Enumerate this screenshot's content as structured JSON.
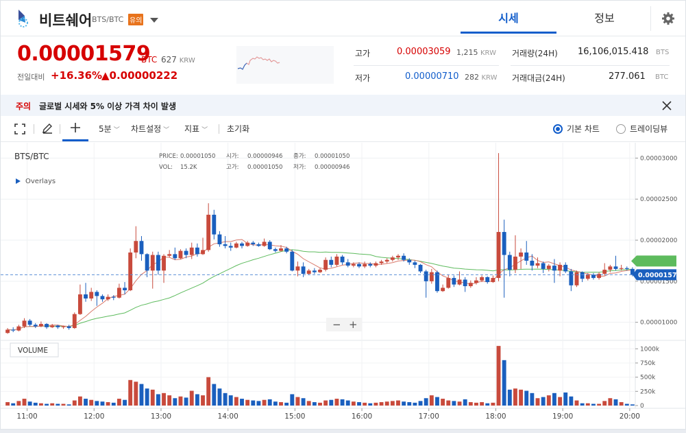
{
  "header": {
    "coin_name": "비트쉐어",
    "pair": "BTS/BTC",
    "warning_badge": "유의",
    "tabs": [
      {
        "label": "시세",
        "active": true
      },
      {
        "label": "정보",
        "active": false
      }
    ]
  },
  "summary": {
    "price": "0.00001579",
    "price_unit": "BTC",
    "price_krw": "627",
    "krw_unit": "KRW",
    "change_label": "전일대비",
    "change_pct": "+16.36%",
    "change_abs": "▲0.00000222",
    "high_label": "고가",
    "high_value": "0.00003059",
    "high_krw": "1,215",
    "low_label": "저가",
    "low_value": "0.00000710",
    "low_krw": "282",
    "krw_unit2": "KRW",
    "volume_label": "거래량(24H)",
    "volume_value": "16,106,015.418",
    "volume_unit": "BTS",
    "amount_label": "거래대금(24H)",
    "amount_value": "277.061",
    "amount_unit": "BTC"
  },
  "notice": {
    "tag": "주의",
    "text": "글로벌 시세와 5% 이상 가격 차이 발생"
  },
  "toolbar": {
    "interval": "5분",
    "chart_settings": "차트설정",
    "indicators": "지표",
    "reset": "초기화",
    "basic_chart": "기본 차트",
    "tradingview": "트레이딩뷰"
  },
  "chart_labels": {
    "symbol": "BTS/BTC",
    "overlays": "Overlays",
    "volume_btn": "VOLUME",
    "zoom_out": "−",
    "zoom_in": "+"
  },
  "colors": {
    "up": "#c84a3c",
    "down": "#1a5fbe",
    "ma_short": "#d9796b",
    "ma_long": "#5dbb5d",
    "accent": "#115dcb"
  },
  "chart_data": {
    "type": "candlestick",
    "symbol": "BTS/BTC",
    "legend": {
      "PRICE": "0.00001050",
      "시가": "0.00000946",
      "종가": "0.00001050",
      "VOL": "15.2K",
      "고가": "0.00001050",
      "저가": "0.00000946"
    },
    "price_ticks": [
      "0.00003000",
      "0.00002500",
      "0.00002000",
      "0.00001500",
      "0.00001000"
    ],
    "price_tick_values": [
      3e-05,
      2.5e-05,
      2e-05,
      1.5e-05,
      1e-05
    ],
    "ylim": [
      7.8e-06,
      3.12e-05
    ],
    "current_price": "0.00001579",
    "current_price_value": 1.579e-05,
    "volume_ticks": [
      "1000k",
      "750k",
      "500k",
      "250k",
      "0"
    ],
    "volume_tick_values": [
      1000000,
      750000,
      500000,
      250000,
      0
    ],
    "volume_max": 1100000,
    "time_labels": [
      "11:00",
      "12:00",
      "13:00",
      "14:00",
      "15:00",
      "16:00",
      "17:00",
      "18:00",
      "19:00",
      "20:00"
    ],
    "start_label": "10:40",
    "interval_minutes": 5,
    "candles": [
      [
        8.7e-06,
        9.1e-06,
        9.3e-06,
        8.6e-06,
        60000
      ],
      [
        9.1e-06,
        9e-06,
        9.4e-06,
        8.8e-06,
        40000
      ],
      [
        9e-06,
        9.5e-06,
        9.7e-06,
        8.9e-06,
        80000
      ],
      [
        9.5e-06,
        1.02e-05,
        1.05e-05,
        9.3e-06,
        120000
      ],
      [
        1.02e-05,
        9.7e-06,
        1.04e-05,
        9.5e-06,
        70000
      ],
      [
        9.7e-06,
        9.5e-06,
        9.9e-06,
        9.3e-06,
        50000
      ],
      [
        9.5e-06,
        9.8e-06,
        1.01e-05,
        9.4e-06,
        40000
      ],
      [
        9.8e-06,
        9.4e-06,
        9.9e-06,
        9.2e-06,
        30000
      ],
      [
        9.4e-06,
        9.6e-06,
        9.8e-06,
        9.3e-06,
        40000
      ],
      [
        9.6e-06,
        9.4e-06,
        9.7e-06,
        9.2e-06,
        30000
      ],
      [
        9.4e-06,
        9.5e-06,
        9.6e-06,
        9.2e-06,
        30000
      ],
      [
        9.5e-06,
        9.3e-06,
        9.7e-06,
        9.1e-06,
        20000
      ],
      [
        9.3e-06,
        1.1e-05,
        1.12e-05,
        9.2e-06,
        90000
      ],
      [
        1.1e-05,
        1.34e-05,
        1.46e-05,
        1.09e-05,
        160000
      ],
      [
        1.34e-05,
        1.29e-05,
        1.48e-05,
        1.25e-05,
        120000
      ],
      [
        1.29e-05,
        1.37e-05,
        1.42e-05,
        1.26e-05,
        100000
      ],
      [
        1.37e-05,
        1.32e-05,
        1.39e-05,
        1.2e-05,
        80000
      ],
      [
        1.32e-05,
        1.28e-05,
        1.34e-05,
        1.25e-05,
        70000
      ],
      [
        1.28e-05,
        1.31e-05,
        1.34e-05,
        1.26e-05,
        60000
      ],
      [
        1.31e-05,
        1.3e-05,
        1.33e-05,
        1.27e-05,
        50000
      ],
      [
        1.3e-05,
        1.42e-05,
        1.47e-05,
        1.29e-05,
        120000
      ],
      [
        1.42e-05,
        1.39e-05,
        1.49e-05,
        1.34e-05,
        100000
      ],
      [
        1.39e-05,
        1.85e-05,
        1.9e-05,
        1.38e-05,
        450000
      ],
      [
        1.85e-05,
        1.99e-05,
        2.17e-05,
        1.78e-05,
        420000
      ],
      [
        1.99e-05,
        1.83e-05,
        2.05e-05,
        1.75e-05,
        380000
      ],
      [
        1.83e-05,
        1.63e-05,
        1.84e-05,
        1.55e-05,
        300000
      ],
      [
        1.63e-05,
        1.82e-05,
        1.86e-05,
        1.41e-05,
        280000
      ],
      [
        1.82e-05,
        1.63e-05,
        1.86e-05,
        1.58e-05,
        200000
      ],
      [
        1.63e-05,
        1.81e-05,
        1.83e-05,
        1.48e-05,
        220000
      ],
      [
        1.81e-05,
        1.83e-05,
        1.88e-05,
        1.79e-05,
        180000
      ],
      [
        1.83e-05,
        1.78e-05,
        1.91e-05,
        1.76e-05,
        130000
      ],
      [
        1.78e-05,
        1.87e-05,
        1.89e-05,
        1.77e-05,
        160000
      ],
      [
        1.87e-05,
        1.82e-05,
        1.9e-05,
        1.78e-05,
        140000
      ],
      [
        1.82e-05,
        1.91e-05,
        1.97e-05,
        1.77e-05,
        260000
      ],
      [
        1.91e-05,
        1.83e-05,
        1.96e-05,
        1.8e-05,
        200000
      ],
      [
        1.83e-05,
        1.88e-05,
        2.03e-05,
        1.82e-05,
        180000
      ],
      [
        1.88e-05,
        2.31e-05,
        2.45e-05,
        1.86e-05,
        500000
      ],
      [
        2.31e-05,
        2.07e-05,
        2.37e-05,
        2.01e-05,
        380000
      ],
      [
        2.07e-05,
        1.95e-05,
        2.11e-05,
        1.92e-05,
        300000
      ],
      [
        1.95e-05,
        1.93e-05,
        2.05e-05,
        1.9e-05,
        220000
      ],
      [
        1.93e-05,
        1.91e-05,
        1.97e-05,
        1.87e-05,
        180000
      ],
      [
        1.91e-05,
        1.96e-05,
        1.98e-05,
        1.9e-05,
        150000
      ],
      [
        1.96e-05,
        1.93e-05,
        1.98e-05,
        1.9e-05,
        120000
      ],
      [
        1.93e-05,
        1.97e-05,
        1.99e-05,
        1.92e-05,
        100000
      ],
      [
        1.97e-05,
        1.95e-05,
        1.99e-05,
        1.93e-05,
        90000
      ],
      [
        1.95e-05,
        1.93e-05,
        1.97e-05,
        1.92e-05,
        80000
      ],
      [
        1.93e-05,
        1.98e-05,
        2.02e-05,
        1.92e-05,
        100000
      ],
      [
        1.98e-05,
        1.89e-05,
        2e-05,
        1.88e-05,
        110000
      ],
      [
        1.89e-05,
        1.87e-05,
        1.91e-05,
        1.85e-05,
        70000
      ],
      [
        1.87e-05,
        1.9e-05,
        1.94e-05,
        1.86e-05,
        60000
      ],
      [
        1.9e-05,
        1.86e-05,
        1.92e-05,
        1.84e-05,
        50000
      ],
      [
        1.86e-05,
        1.63e-05,
        1.88e-05,
        1.62e-05,
        200000
      ],
      [
        1.63e-05,
        1.68e-05,
        1.74e-05,
        1.56e-05,
        150000
      ],
      [
        1.68e-05,
        1.59e-05,
        1.73e-05,
        1.55e-05,
        130000
      ],
      [
        1.59e-05,
        1.63e-05,
        1.65e-05,
        1.58e-05,
        80000
      ],
      [
        1.63e-05,
        1.61e-05,
        1.66e-05,
        1.59e-05,
        60000
      ],
      [
        1.61e-05,
        1.64e-05,
        1.66e-05,
        1.6e-05,
        50000
      ],
      [
        1.64e-05,
        1.76e-05,
        1.79e-05,
        1.62e-05,
        90000
      ],
      [
        1.76e-05,
        1.7e-05,
        1.8e-05,
        1.67e-05,
        100000
      ],
      [
        1.7e-05,
        1.8e-05,
        1.83e-05,
        1.68e-05,
        120000
      ],
      [
        1.8e-05,
        1.73e-05,
        1.82e-05,
        1.7e-05,
        110000
      ],
      [
        1.73e-05,
        1.69e-05,
        1.77e-05,
        1.67e-05,
        90000
      ],
      [
        1.69e-05,
        1.71e-05,
        1.73e-05,
        1.67e-05,
        70000
      ],
      [
        1.71e-05,
        1.68e-05,
        1.73e-05,
        1.66e-05,
        60000
      ],
      [
        1.68e-05,
        1.71e-05,
        1.74e-05,
        1.66e-05,
        50000
      ],
      [
        1.71e-05,
        1.69e-05,
        1.73e-05,
        1.67e-05,
        40000
      ],
      [
        1.69e-05,
        1.72e-05,
        1.74e-05,
        1.67e-05,
        50000
      ],
      [
        1.72e-05,
        1.74e-05,
        1.76e-05,
        1.7e-05,
        60000
      ],
      [
        1.74e-05,
        1.76e-05,
        1.78e-05,
        1.72e-05,
        70000
      ],
      [
        1.76e-05,
        1.79e-05,
        1.81e-05,
        1.74e-05,
        80000
      ],
      [
        1.79e-05,
        1.81e-05,
        1.83e-05,
        1.76e-05,
        90000
      ],
      [
        1.81e-05,
        1.76e-05,
        1.84e-05,
        1.74e-05,
        70000
      ],
      [
        1.76e-05,
        1.73e-05,
        1.78e-05,
        1.7e-05,
        60000
      ],
      [
        1.73e-05,
        1.7e-05,
        1.75e-05,
        1.66e-05,
        50000
      ],
      [
        1.7e-05,
        1.62e-05,
        1.71e-05,
        1.6e-05,
        80000
      ],
      [
        1.62e-05,
        1.5e-05,
        1.64e-05,
        1.3e-05,
        130000
      ],
      [
        1.5e-05,
        1.61e-05,
        1.65e-05,
        1.47e-05,
        180000
      ],
      [
        1.61e-05,
        1.38e-05,
        1.63e-05,
        1.36e-05,
        150000
      ],
      [
        1.38e-05,
        1.42e-05,
        1.46e-05,
        1.37e-05,
        120000
      ],
      [
        1.42e-05,
        1.54e-05,
        1.58e-05,
        1.41e-05,
        90000
      ],
      [
        1.54e-05,
        1.46e-05,
        1.57e-05,
        1.43e-05,
        80000
      ],
      [
        1.46e-05,
        1.52e-05,
        1.62e-05,
        1.45e-05,
        70000
      ],
      [
        1.52e-05,
        1.44e-05,
        1.55e-05,
        1.37e-05,
        110000
      ],
      [
        1.44e-05,
        1.48e-05,
        1.51e-05,
        1.42e-05,
        60000
      ],
      [
        1.48e-05,
        1.51e-05,
        1.55e-05,
        1.46e-05,
        50000
      ],
      [
        1.51e-05,
        1.55e-05,
        1.57e-05,
        1.49e-05,
        60000
      ],
      [
        1.55e-05,
        1.49e-05,
        1.56e-05,
        1.47e-05,
        40000
      ],
      [
        1.49e-05,
        1.54e-05,
        1.57e-05,
        1.48e-05,
        50000
      ],
      [
        1.54e-05,
        2.1e-05,
        3.06e-05,
        1.5e-05,
        1050000
      ],
      [
        2.1e-05,
        1.82e-05,
        2.25e-05,
        1.3e-05,
        800000
      ],
      [
        1.82e-05,
        1.64e-05,
        1.86e-05,
        1.56e-05,
        280000
      ],
      [
        1.64e-05,
        1.8e-05,
        2.06e-05,
        1.6e-05,
        300000
      ],
      [
        1.8e-05,
        1.85e-05,
        1.9e-05,
        1.65e-05,
        280000
      ],
      [
        1.85e-05,
        1.75e-05,
        1.99e-05,
        1.7e-05,
        260000
      ],
      [
        1.75e-05,
        1.69e-05,
        1.83e-05,
        1.63e-05,
        220000
      ],
      [
        1.69e-05,
        1.72e-05,
        1.79e-05,
        1.66e-05,
        130000
      ],
      [
        1.72e-05,
        1.65e-05,
        1.74e-05,
        1.6e-05,
        150000
      ],
      [
        1.65e-05,
        1.69e-05,
        1.71e-05,
        1.62e-05,
        180000
      ],
      [
        1.69e-05,
        1.63e-05,
        1.77e-05,
        1.48e-05,
        220000
      ],
      [
        1.63e-05,
        1.7e-05,
        1.73e-05,
        1.56e-05,
        150000
      ],
      [
        1.7e-05,
        1.62e-05,
        1.73e-05,
        1.6e-05,
        230000
      ],
      [
        1.62e-05,
        1.45e-05,
        1.65e-05,
        1.38e-05,
        160000
      ],
      [
        1.45e-05,
        1.61e-05,
        1.63e-05,
        1.43e-05,
        90000
      ],
      [
        1.61e-05,
        1.53e-05,
        1.62e-05,
        1.49e-05,
        40000
      ],
      [
        1.53e-05,
        1.58e-05,
        1.6e-05,
        1.51e-05,
        40000
      ],
      [
        1.58e-05,
        1.54e-05,
        1.6e-05,
        1.52e-05,
        30000
      ],
      [
        1.54e-05,
        1.59e-05,
        1.61e-05,
        1.52e-05,
        30000
      ],
      [
        1.59e-05,
        1.64e-05,
        1.72e-05,
        1.57e-05,
        80000
      ],
      [
        1.64e-05,
        1.68e-05,
        1.7e-05,
        1.61e-05,
        130000
      ],
      [
        1.68e-05,
        1.65e-05,
        1.81e-05,
        1.63e-05,
        110000
      ],
      [
        1.65e-05,
        1.66e-05,
        1.7e-05,
        1.63e-05,
        60000
      ],
      [
        1.66e-05,
        1.65e-05,
        1.68e-05,
        1.63e-05,
        30000
      ],
      [
        1.65e-05,
        1.58e-05,
        1.67e-05,
        1.56e-05,
        20000
      ]
    ]
  }
}
